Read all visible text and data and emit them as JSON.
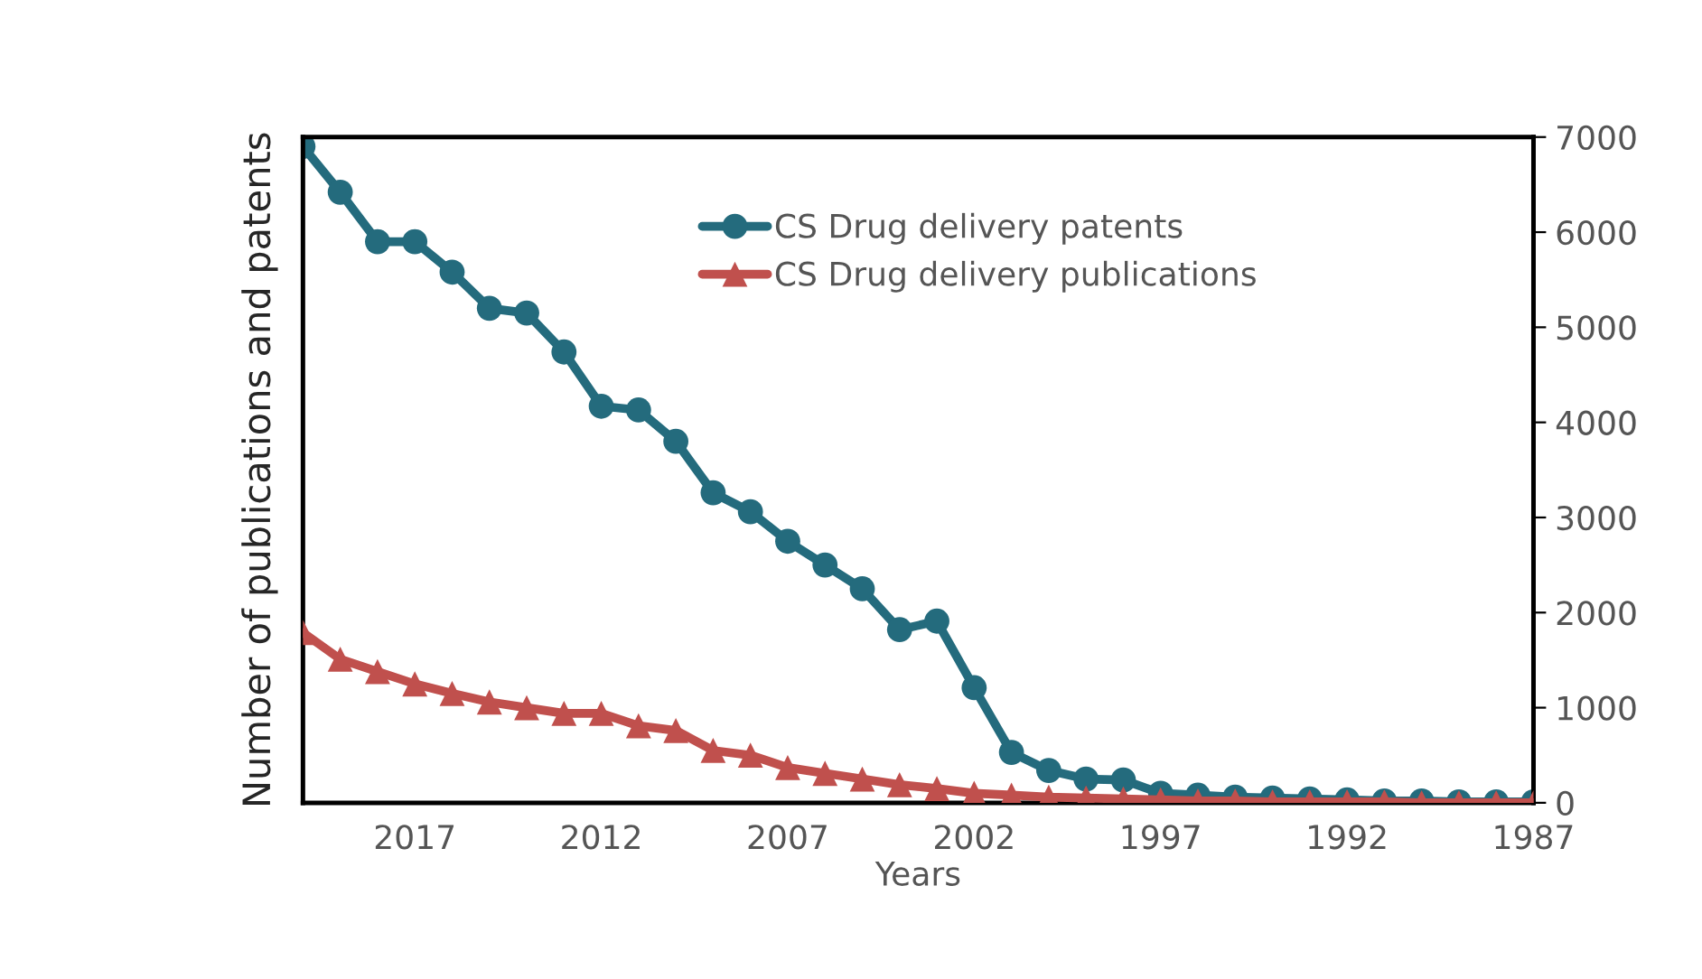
{
  "chart_data": {
    "type": "line",
    "xlabel": "Years",
    "ylabel": "Number of publications and patents",
    "x": [
      2020,
      2019,
      2018,
      2017,
      2016,
      2015,
      2014,
      2013,
      2012,
      2011,
      2010,
      2009,
      2008,
      2007,
      2006,
      2005,
      2004,
      2003,
      2002,
      2001,
      2000,
      1999,
      1998,
      1997,
      1996,
      1995,
      1994,
      1993,
      1992,
      1991,
      1990,
      1989,
      1988,
      1987
    ],
    "series": [
      {
        "name": "CS Drug delivery patents",
        "color": "#246b7d",
        "marker": "circle",
        "values": [
          6900,
          6420,
          5900,
          5900,
          5580,
          5200,
          5150,
          4740,
          4170,
          4130,
          3800,
          3260,
          3060,
          2750,
          2500,
          2250,
          1820,
          1910,
          1210,
          530,
          340,
          250,
          240,
          100,
          80,
          60,
          50,
          40,
          30,
          20,
          20,
          10,
          10,
          10
        ]
      },
      {
        "name": "CS Drug delivery publications",
        "color": "#c0504d",
        "marker": "triangle",
        "values": [
          1790,
          1510,
          1380,
          1250,
          1150,
          1060,
          1000,
          940,
          940,
          810,
          760,
          550,
          500,
          370,
          310,
          250,
          190,
          150,
          100,
          80,
          60,
          50,
          40,
          30,
          20,
          20,
          10,
          10,
          10,
          10,
          0,
          0,
          0,
          0
        ]
      }
    ],
    "xlim": [
      2020,
      1987
    ],
    "xticks": [
      2017,
      2012,
      2007,
      2002,
      1997,
      1992,
      1987
    ],
    "ylim": [
      0,
      7000
    ],
    "yticks": [
      0,
      1000,
      2000,
      3000,
      4000,
      5000,
      6000,
      7000
    ],
    "grid": false,
    "legend": "top",
    "line_style": "solid"
  }
}
